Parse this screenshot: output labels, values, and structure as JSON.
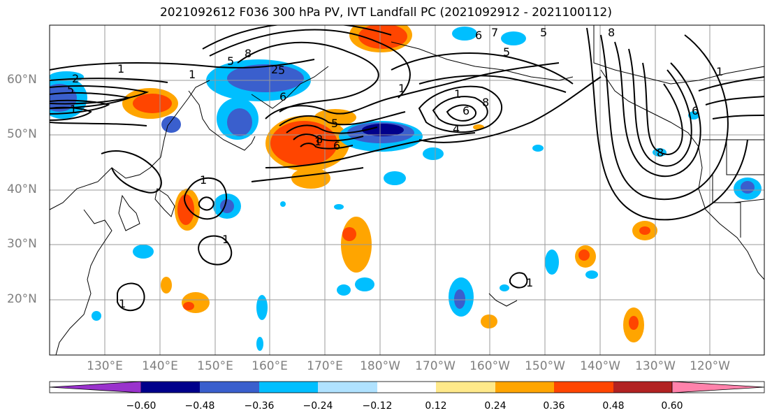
{
  "title": "2021092612 F036 300 hPa PV, IVT Landfall PC (2021092912 - 2021100112)",
  "lat_labels": [
    "60°N",
    "50°N",
    "40°N",
    "30°N",
    "20°N"
  ],
  "lon_labels": [
    "130°E",
    "140°E",
    "150°E",
    "160°E",
    "170°E",
    "180°W",
    "170°W",
    "160°W",
    "150°W",
    "140°W",
    "130°W",
    "120°W"
  ],
  "colorbar": {
    "ticks": [
      "−0.60",
      "−0.48",
      "−0.36",
      "−0.24",
      "−0.12",
      "0.12",
      "0.24",
      "0.36",
      "0.48",
      "0.60"
    ],
    "colors": [
      "#9932cc",
      "#00008b",
      "#3a5fcd",
      "#00bfff",
      "#b0e2ff",
      "#ffffff",
      "#ffe98a",
      "#ffa500",
      "#ff4500",
      "#b22222",
      "#ff82ab"
    ]
  },
  "contour_labels": [
    "1",
    "2",
    "5",
    "1",
    "1",
    "8",
    "5",
    "2",
    "5",
    "6",
    "1",
    "6",
    "7",
    "5",
    "5",
    "8",
    "1",
    "6",
    "4",
    "5",
    "1",
    "6",
    "8",
    "1",
    "1",
    "1",
    "1",
    "1",
    "8",
    "8",
    "6"
  ]
}
